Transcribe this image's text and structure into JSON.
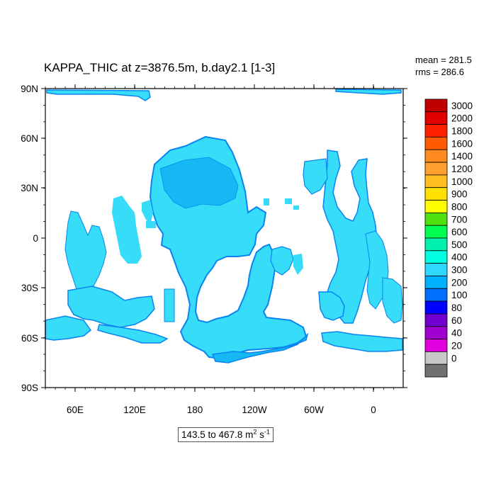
{
  "title": "KAPPA_THIC at z=3876.5m, b.day2.1 [1-3]",
  "stats": {
    "mean": "mean = 281.5",
    "rms": "rms = 286.6"
  },
  "range": {
    "prefix": "143.5 to 467.8 m",
    "exp1": "2",
    "mid": " s",
    "exp2": "-1"
  },
  "axes": {
    "lat_labels": [
      "90N",
      "60N",
      "30N",
      "0",
      "30S",
      "60S",
      "90S"
    ],
    "lon_labels": [
      "60E",
      "120E",
      "180",
      "120W",
      "60W",
      "0"
    ]
  },
  "colorbar": {
    "labels": [
      "3000",
      "2000",
      "1800",
      "1600",
      "1400",
      "1200",
      "1000",
      "900",
      "800",
      "700",
      "600",
      "500",
      "400",
      "300",
      "200",
      "100",
      "80",
      "60",
      "40",
      "20",
      "0"
    ],
    "colors": [
      "#c00000",
      "#e00000",
      "#ff2000",
      "#ff5a00",
      "#ff8a20",
      "#ffa030",
      "#ffc020",
      "#ffe000",
      "#ffff00",
      "#50e010",
      "#00ff50",
      "#00f0b0",
      "#00ffe0",
      "#30d8ff",
      "#00b0ff",
      "#0070ff",
      "#0000ff",
      "#7000d0",
      "#a000d0",
      "#e000e0",
      "#c8c8c8",
      "#707070"
    ]
  },
  "colors": {
    "ocean_main": "#36dcf8",
    "ocean_deep": "#16b8f4",
    "ocean_edge": "#0a84f0",
    "land": "#ffffff"
  }
}
